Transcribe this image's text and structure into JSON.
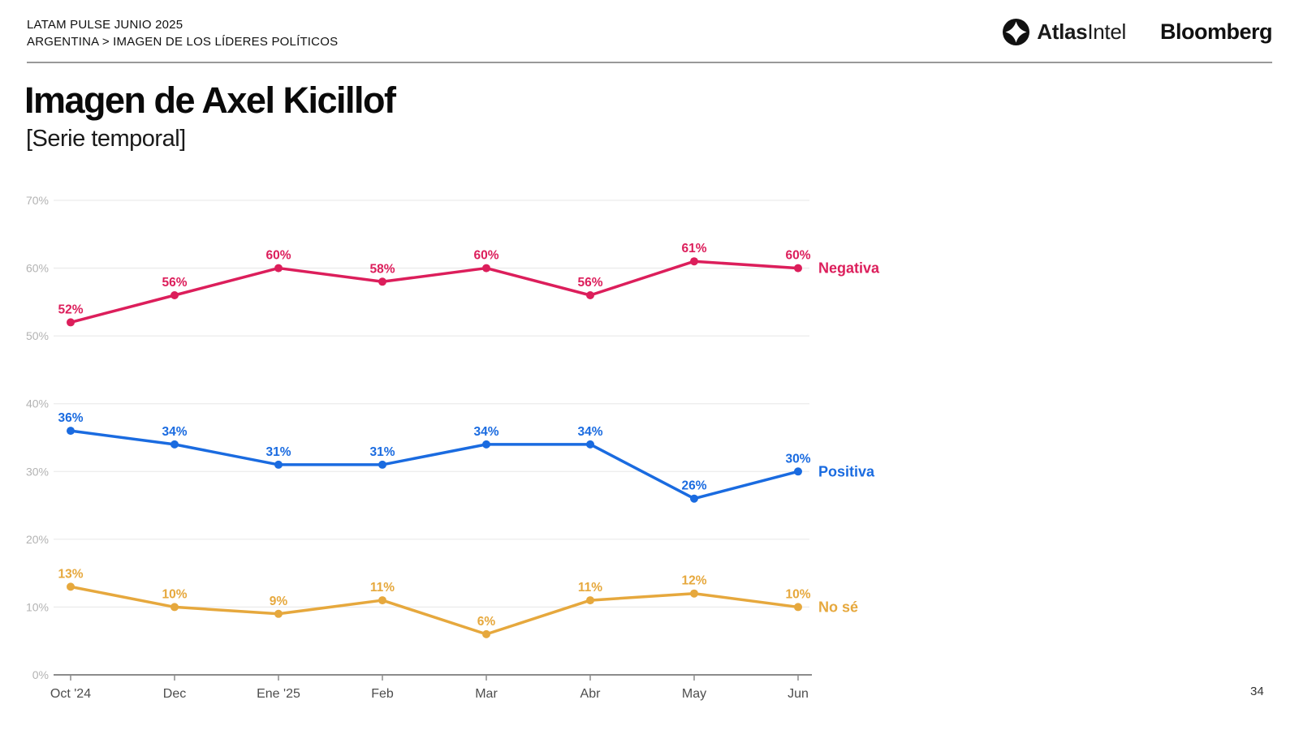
{
  "header": {
    "kicker_line1": "LATAM PULSE JUNIO 2025",
    "kicker_line2": "ARGENTINA > IMAGEN DE LOS LÍDERES POLÍTICOS",
    "logos": {
      "atlasintel_bold": "Atlas",
      "atlasintel_light": "Intel",
      "atlasintel_icon": "four-point-star-in-circle",
      "bloomberg": "Bloomberg"
    }
  },
  "title": "Imagen de Axel Kicillof",
  "subtitle": "[Serie temporal]",
  "page_number": "34",
  "chart_data": {
    "type": "line",
    "title": "Imagen de Axel Kicillof [Serie temporal]",
    "categories": [
      "Oct '24",
      "Dec",
      "Ene '25",
      "Feb",
      "Mar",
      "Abr",
      "May",
      "Jun"
    ],
    "series": [
      {
        "name": "Negativa",
        "color": "#DC1E5B",
        "values": [
          52,
          56,
          60,
          58,
          60,
          56,
          61,
          60
        ]
      },
      {
        "name": "Positiva",
        "color": "#1A6BE0",
        "values": [
          36,
          34,
          31,
          31,
          34,
          34,
          26,
          30
        ]
      },
      {
        "name": "No sé",
        "color": "#E6A83D",
        "values": [
          13,
          10,
          9,
          11,
          6,
          11,
          12,
          10
        ]
      }
    ],
    "ylim": [
      0,
      70
    ],
    "yticks": [
      0,
      10,
      20,
      30,
      40,
      50,
      60,
      70
    ],
    "ytick_format": "percent",
    "value_label_format": "percent",
    "grid": true,
    "legend_position": "right-end-of-lines"
  }
}
